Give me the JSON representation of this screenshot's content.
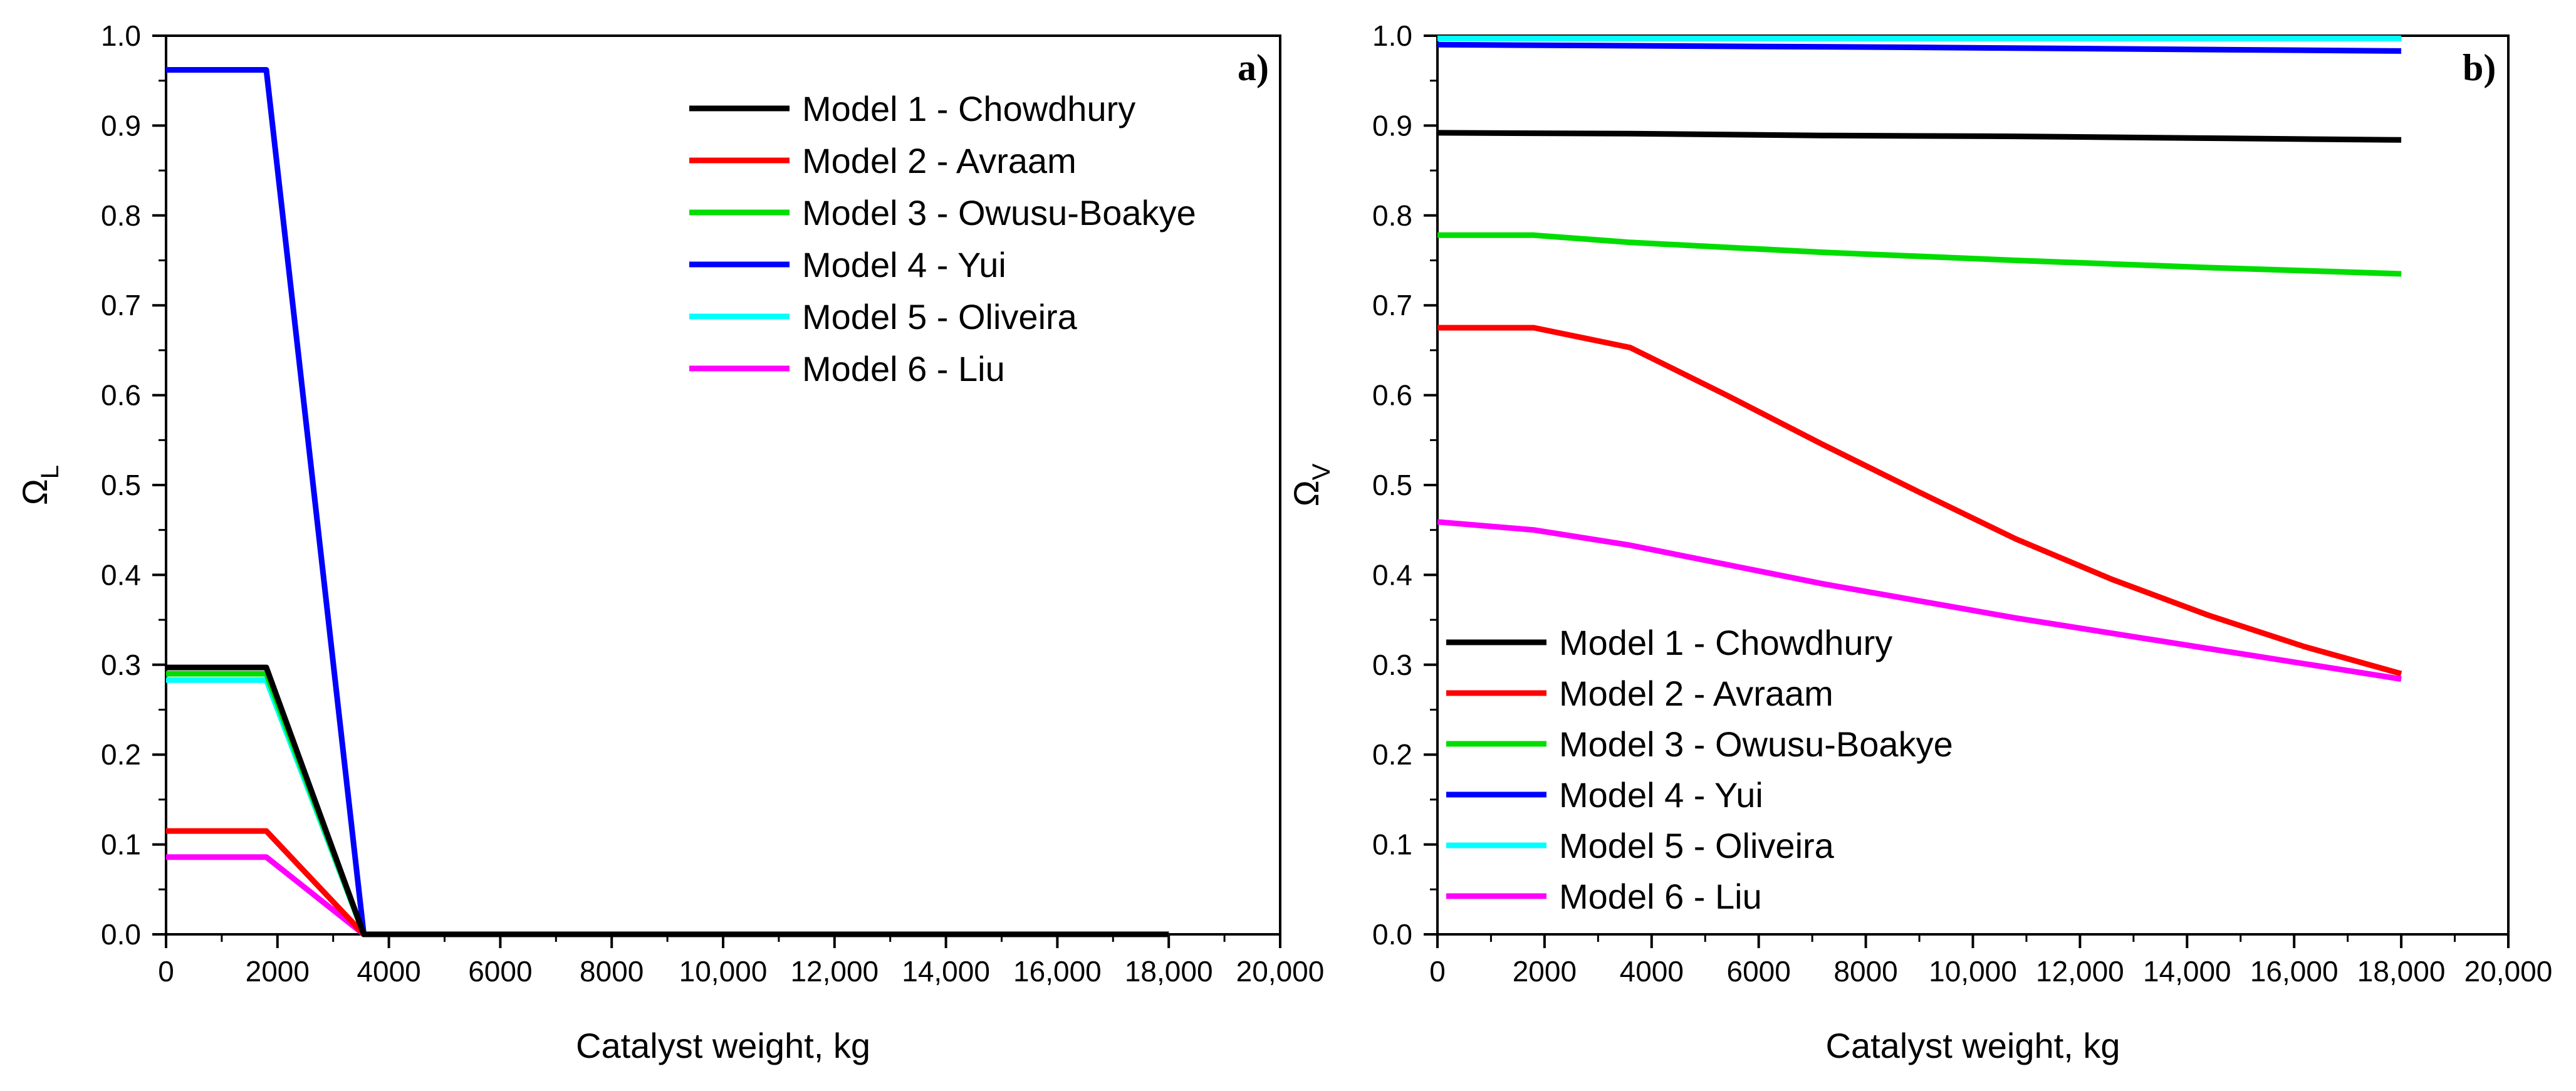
{
  "chart_data": [
    {
      "type": "line",
      "panel_label": "a)",
      "xlabel": "Catalyst weight, kg",
      "ylabel": "Ω",
      "ylabel_subscript": "L",
      "xlim": [
        0,
        20000
      ],
      "ylim": [
        0,
        1.0
      ],
      "x_ticks": [
        0,
        2000,
        4000,
        6000,
        8000,
        10000,
        12000,
        14000,
        16000,
        18000,
        20000
      ],
      "x_tick_labels": [
        "0",
        "2000",
        "4000",
        "6000",
        "8000",
        "10,000",
        "12,000",
        "14,000",
        "16,000",
        "18,000",
        "20,000"
      ],
      "y_ticks": [
        0,
        0.1,
        0.2,
        0.3,
        0.4,
        0.5,
        0.6,
        0.7,
        0.8,
        0.9,
        1.0
      ],
      "y_tick_labels": [
        "0.0",
        "0.1",
        "0.2",
        "0.3",
        "0.4",
        "0.5",
        "0.6",
        "0.7",
        "0.8",
        "0.9",
        "1.0"
      ],
      "legend_position": "top-right",
      "series": [
        {
          "name": "Model 1 - Chowdhury",
          "color": "#000000",
          "x": [
            0,
            1800,
            3550,
            18000
          ],
          "y": [
            0.297,
            0.297,
            0,
            0
          ]
        },
        {
          "name": "Model 2 - Avraam",
          "color": "#ff0000",
          "x": [
            0,
            1800,
            3550,
            18000
          ],
          "y": [
            0.115,
            0.115,
            0,
            0
          ]
        },
        {
          "name": "Model 3 - Owusu-Boakye",
          "color": "#00dd00",
          "x": [
            0,
            1800,
            3550,
            18000
          ],
          "y": [
            0.29,
            0.29,
            0,
            0
          ]
        },
        {
          "name": "Model 4 - Yui",
          "color": "#0000ff",
          "x": [
            0,
            1800,
            3550,
            18000
          ],
          "y": [
            0.962,
            0.962,
            0,
            0
          ]
        },
        {
          "name": "Model 5 - Oliveira",
          "color": "#00ffff",
          "x": [
            0,
            1800,
            3550,
            18000
          ],
          "y": [
            0.283,
            0.283,
            0,
            0
          ]
        },
        {
          "name": "Model 6  - Liu",
          "color": "#ff00ff",
          "x": [
            0,
            1800,
            3550,
            18000
          ],
          "y": [
            0.086,
            0.086,
            0,
            0
          ]
        }
      ]
    },
    {
      "type": "line",
      "panel_label": "b)",
      "xlabel": "Catalyst weight, kg",
      "ylabel": "Ω",
      "ylabel_subscript": "V",
      "xlim": [
        0,
        20000
      ],
      "ylim": [
        0,
        1.0
      ],
      "x_ticks": [
        0,
        2000,
        4000,
        6000,
        8000,
        10000,
        12000,
        14000,
        16000,
        18000,
        20000
      ],
      "x_tick_labels": [
        "0",
        "2000",
        "4000",
        "6000",
        "8000",
        "10,000",
        "12,000",
        "14,000",
        "16,000",
        "18,000",
        "20,000"
      ],
      "y_ticks": [
        0,
        0.1,
        0.2,
        0.3,
        0.4,
        0.5,
        0.6,
        0.7,
        0.8,
        0.9,
        1.0
      ],
      "y_tick_labels": [
        "0.0",
        "0.1",
        "0.2",
        "0.3",
        "0.4",
        "0.5",
        "0.6",
        "0.7",
        "0.8",
        "0.9",
        "1.0"
      ],
      "legend_position": "bottom-left",
      "series": [
        {
          "name": "Model 1 - Chowdhury",
          "color": "#000000",
          "x": [
            0,
            3600,
            7200,
            10800,
            14400,
            18000
          ],
          "y": [
            0.892,
            0.891,
            0.889,
            0.888,
            0.886,
            0.884
          ]
        },
        {
          "name": "Model 2 - Avraam",
          "color": "#ff0000",
          "x": [
            0,
            1800,
            3600,
            5400,
            7200,
            9000,
            10800,
            12600,
            14400,
            16200,
            18000
          ],
          "y": [
            0.675,
            0.675,
            0.653,
            0.6,
            0.545,
            0.492,
            0.44,
            0.395,
            0.355,
            0.32,
            0.29
          ]
        },
        {
          "name": "Model 3 - Owusu-Boakye",
          "color": "#00dd00",
          "x": [
            0,
            1800,
            3600,
            7200,
            10800,
            14400,
            18000
          ],
          "y": [
            0.778,
            0.778,
            0.77,
            0.759,
            0.75,
            0.742,
            0.735
          ]
        },
        {
          "name": "Model 4 - Yui",
          "color": "#0000ff",
          "x": [
            0,
            9000,
            18000
          ],
          "y": [
            0.99,
            0.987,
            0.983
          ]
        },
        {
          "name": "Model 5 - Oliveira",
          "color": "#00ffff",
          "x": [
            0,
            18000
          ],
          "y": [
            0.997,
            0.997
          ]
        },
        {
          "name": "Model 6  - Liu",
          "color": "#ff00ff",
          "x": [
            0,
            1800,
            3600,
            7200,
            10800,
            14400,
            18000
          ],
          "y": [
            0.459,
            0.45,
            0.433,
            0.39,
            0.352,
            0.318,
            0.284
          ]
        }
      ]
    }
  ]
}
